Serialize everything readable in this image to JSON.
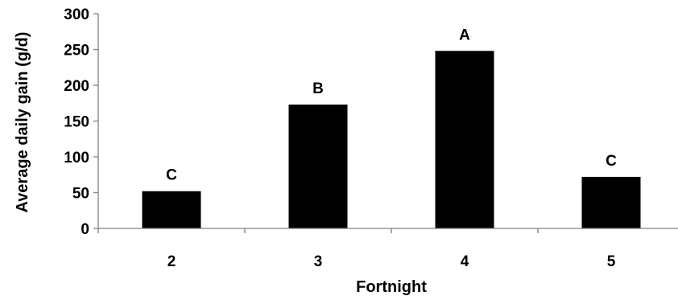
{
  "chart_data": {
    "type": "bar",
    "title": "",
    "xlabel": "Fortnight",
    "ylabel": "Average daily gain (g/d)",
    "categories": [
      "2",
      "3",
      "4",
      "5"
    ],
    "values": [
      52,
      173,
      248,
      72
    ],
    "annotations": [
      "C",
      "B",
      "A",
      "C"
    ],
    "ylim": [
      0,
      300
    ],
    "yticks": [
      0,
      50,
      100,
      150,
      200,
      250,
      300
    ],
    "grid": false,
    "legend": "none",
    "bar_color": "#000000",
    "axis_color": "#808080"
  }
}
